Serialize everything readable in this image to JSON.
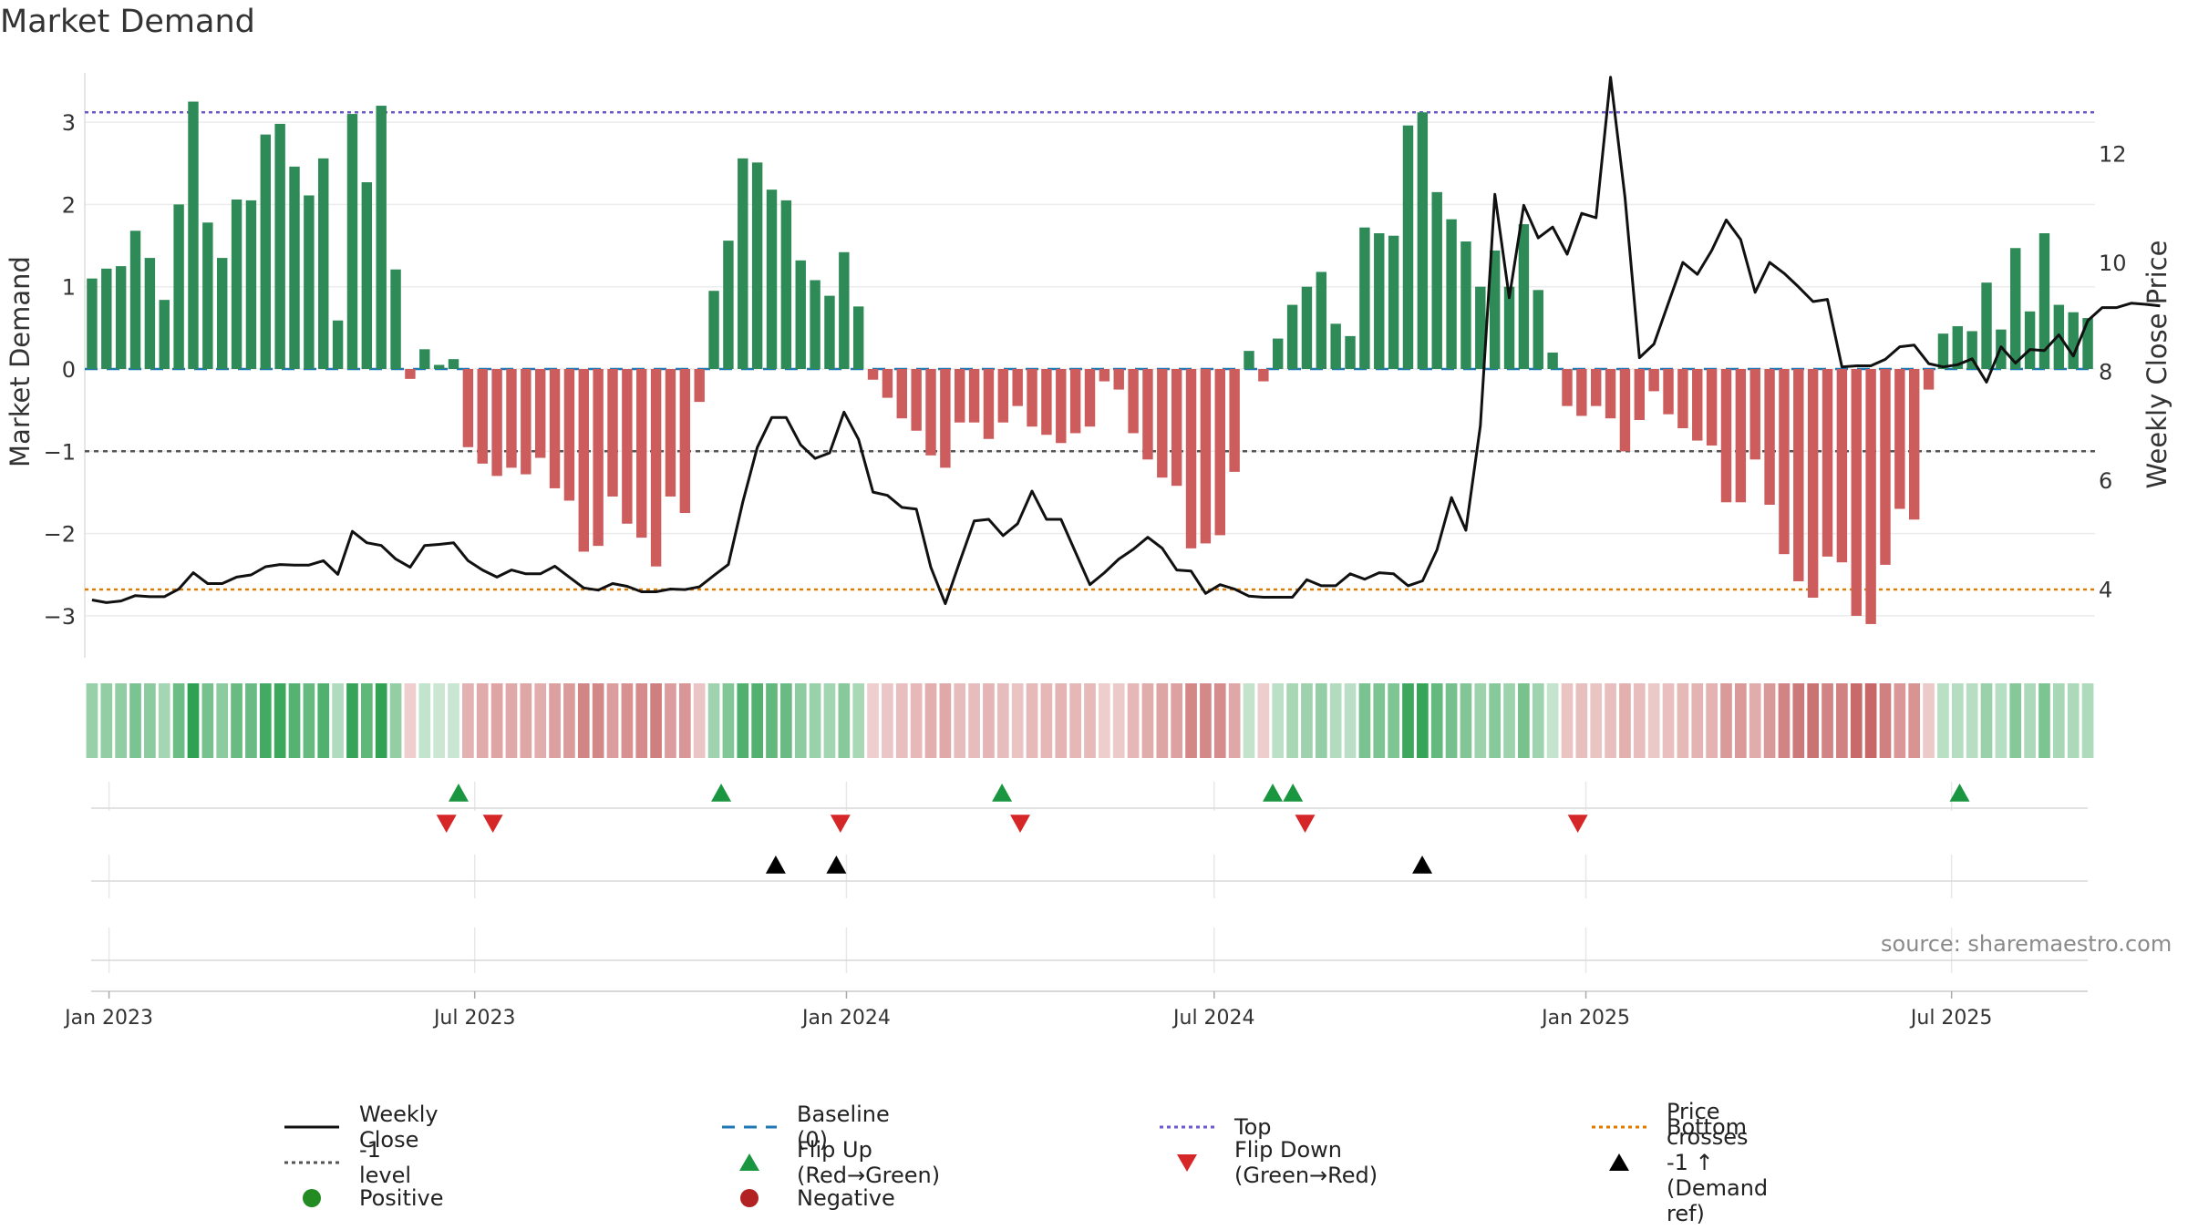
{
  "title": "Market Demand",
  "source": "source: sharemaestro.com",
  "y_left_label": "Market Demand",
  "y_right_label": "Weekly Close Price",
  "y_left_ticks": [
    "3",
    "2",
    "1",
    "0",
    "−1",
    "−2",
    "−3"
  ],
  "y_right_ticks": [
    "12",
    "10",
    "8",
    "6",
    "4"
  ],
  "x_ticks": [
    "Jan 2023",
    "Jul 2023",
    "Jan 2024",
    "Jul 2024",
    "Jan 2025",
    "Jul 2025"
  ],
  "colors": {
    "positive": "#2e8b57",
    "negative": "#cd5c5c",
    "close": "#111111",
    "baseline": "#1f77b4",
    "top": "#6a5acd",
    "bottom": "#e07b00",
    "minus1": "#555555",
    "flip_up": "#1a9641",
    "flip_down": "#d62728",
    "cross": "#000000"
  },
  "chart_data": {
    "type": "bar+line",
    "title": "Market Demand",
    "ylabel": "Market Demand",
    "y2label": "Weekly Close Price",
    "ylim": [
      -3.45,
      3.55
    ],
    "y2lim": [
      3.25,
      13.5
    ],
    "x_start": "2022-12-20",
    "x_end": "2025-09-10",
    "reference_lines": {
      "top": 3.12,
      "bottom": -2.68,
      "minus1": -1.0,
      "baseline": 0
    },
    "demand": [
      1.1,
      1.22,
      1.25,
      1.68,
      1.35,
      0.84,
      2.0,
      3.25,
      1.78,
      1.35,
      2.06,
      2.05,
      2.85,
      2.98,
      2.46,
      2.11,
      2.56,
      0.59,
      3.1,
      2.27,
      3.2,
      1.21,
      -0.12,
      0.24,
      0.05,
      0.12,
      -0.95,
      -1.15,
      -1.3,
      -1.2,
      -1.28,
      -1.08,
      -1.45,
      -1.6,
      -2.22,
      -2.15,
      -1.55,
      -1.88,
      -2.05,
      -2.4,
      -1.55,
      -1.75,
      -0.4,
      0.95,
      1.56,
      2.56,
      2.51,
      2.18,
      2.05,
      1.32,
      1.08,
      0.89,
      1.42,
      0.76,
      -0.13,
      -0.35,
      -0.6,
      -0.75,
      -1.05,
      -1.2,
      -0.65,
      -0.65,
      -0.85,
      -0.65,
      -0.45,
      -0.7,
      -0.8,
      -0.9,
      -0.78,
      -0.7,
      -0.15,
      -0.25,
      -0.78,
      -1.1,
      -1.32,
      -1.42,
      -2.18,
      -2.12,
      -2.02,
      -1.25,
      0.22,
      -0.15,
      0.37,
      0.78,
      1.0,
      1.18,
      0.55,
      0.4,
      1.72,
      1.65,
      1.62,
      2.96,
      3.12,
      2.15,
      1.82,
      1.55,
      1.0,
      1.44,
      1.0,
      1.76,
      0.96,
      0.2,
      -0.45,
      -0.57,
      -0.45,
      -0.6,
      -1.0,
      -0.62,
      -0.27,
      -0.55,
      -0.72,
      -0.87,
      -0.93,
      -1.62,
      -1.62,
      -1.1,
      -1.65,
      -2.25,
      -2.58,
      -2.78,
      -2.28,
      -2.35,
      -3.0,
      -3.1,
      -2.38,
      -1.7,
      -1.83,
      -0.25,
      0.43,
      0.52,
      0.46,
      1.05,
      0.48,
      1.47,
      0.7,
      1.65,
      0.78,
      0.69,
      0.62
    ],
    "weekly_close": [
      3.8,
      3.75,
      3.78,
      3.88,
      3.86,
      3.86,
      4.0,
      4.3,
      4.1,
      4.1,
      4.22,
      4.26,
      4.41,
      4.45,
      4.44,
      4.44,
      4.52,
      4.27,
      5.06,
      4.85,
      4.8,
      4.55,
      4.4,
      4.8,
      4.82,
      4.85,
      4.52,
      4.35,
      4.22,
      4.35,
      4.28,
      4.28,
      4.42,
      4.22,
      4.02,
      3.98,
      4.1,
      4.05,
      3.95,
      3.95,
      4.0,
      3.99,
      4.04,
      4.25,
      4.45,
      5.6,
      6.6,
      7.15,
      7.15,
      6.65,
      6.4,
      6.5,
      7.25,
      6.75,
      5.78,
      5.72,
      5.5,
      5.47,
      4.4,
      3.73,
      4.5,
      5.25,
      5.28,
      4.98,
      5.2,
      5.8,
      5.28,
      5.28,
      4.68,
      4.08,
      4.3,
      4.55,
      4.73,
      4.95,
      4.75,
      4.35,
      4.33,
      3.92,
      4.08,
      4.0,
      3.87,
      3.85,
      3.85,
      3.85,
      4.17,
      4.06,
      4.06,
      4.28,
      4.18,
      4.3,
      4.28,
      4.06,
      4.15,
      4.72,
      5.68,
      5.08,
      7.0,
      11.25,
      9.35,
      11.05,
      10.45,
      10.65,
      10.15,
      10.9,
      10.82,
      13.4,
      11.2,
      8.25,
      8.5,
      9.25,
      10.0,
      9.78,
      10.22,
      10.78,
      10.42,
      9.45,
      10.0,
      9.8,
      9.55,
      9.28,
      9.32,
      8.08,
      8.1,
      8.1,
      8.22,
      8.45,
      8.48,
      8.14,
      8.08,
      8.12,
      8.23,
      7.8,
      8.45,
      8.15,
      8.4,
      8.38,
      8.67,
      8.28,
      8.93,
      9.17,
      9.17,
      9.25,
      9.23,
      9.2
    ]
  },
  "flips_up_x": [
    "2023-06-23",
    "2023-10-31",
    "2024-03-18",
    "2024-07-30",
    "2024-08-09",
    "2025-07-05"
  ],
  "flips_down_x": [
    "2023-06-17",
    "2023-07-10",
    "2023-12-29",
    "2024-03-27",
    "2024-08-15",
    "2024-12-28"
  ],
  "price_crosses_x": [
    "2023-11-27",
    "2023-12-27",
    "2024-10-12"
  ],
  "legend": [
    {
      "label": "Weekly Close",
      "kind": "line-solid",
      "color": "#111111"
    },
    {
      "label": "Baseline (0)",
      "kind": "line-dash",
      "color": "#1f77b4"
    },
    {
      "label": "Top",
      "kind": "line-dot",
      "color": "#6a5acd"
    },
    {
      "label": "Bottom",
      "kind": "line-dot",
      "color": "#e07b00"
    },
    {
      "label": "-1 level",
      "kind": "line-dot",
      "color": "#555555"
    },
    {
      "label": "Flip Up (Red→Green)",
      "kind": "tri-up",
      "color": "#1a9641"
    },
    {
      "label": "Flip Down (Green→Red)",
      "kind": "tri-down",
      "color": "#d62728"
    },
    {
      "label": "Price crosses -1 ↑ (Demand ref)",
      "kind": "tri-up",
      "color": "#000000"
    },
    {
      "label": "Positive",
      "kind": "dot",
      "color": "#228b22"
    },
    {
      "label": "Negative",
      "kind": "dot",
      "color": "#b22222"
    }
  ]
}
